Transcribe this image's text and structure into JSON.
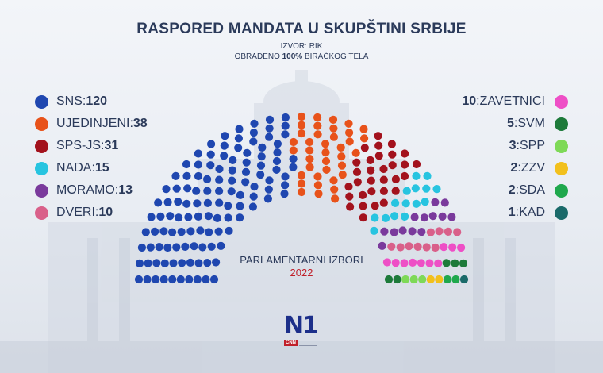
{
  "header": {
    "title": "RASPORED MANDATA U SKUPŠTINI SRBIJE",
    "source": "IZVOR: RIK",
    "processed_prefix": "OBRAĐENO ",
    "processed_bold": "100%",
    "processed_suffix": " BIRAČKOG TELA"
  },
  "center": {
    "subtitle": "PARLAMENTARNI IZBORI",
    "year": "2022"
  },
  "logo": {
    "text": "N1",
    "cnn": "CNN"
  },
  "chart_data": {
    "type": "parliament",
    "total_seats": 250,
    "parties": [
      {
        "name": "SNS",
        "seats": 120,
        "color": "#1f47b0",
        "side": "left"
      },
      {
        "name": "UJEDINJENI",
        "seats": 38,
        "color": "#e8521a",
        "side": "left"
      },
      {
        "name": "SPS-JS",
        "seats": 31,
        "color": "#a3121d",
        "side": "left"
      },
      {
        "name": "NADA",
        "seats": 15,
        "color": "#27c4e0",
        "side": "left"
      },
      {
        "name": "MORAMO",
        "seats": 13,
        "color": "#7a3a9c",
        "side": "left"
      },
      {
        "name": "DVERI",
        "seats": 10,
        "color": "#d9608a",
        "side": "left"
      },
      {
        "name": "ZAVETNICI",
        "seats": 10,
        "color": "#ee4fc6",
        "side": "right"
      },
      {
        "name": "SVM",
        "seats": 5,
        "color": "#1d7a3a",
        "side": "right"
      },
      {
        "name": "SPP",
        "seats": 3,
        "color": "#7ed957",
        "side": "right"
      },
      {
        "name": "ZZV",
        "seats": 2,
        "color": "#f2c01c",
        "side": "right"
      },
      {
        "name": "SDA",
        "seats": 2,
        "color": "#1fa84d",
        "side": "right"
      },
      {
        "name": "KAD",
        "seats": 1,
        "color": "#1a6a6a",
        "side": "right"
      }
    ]
  }
}
